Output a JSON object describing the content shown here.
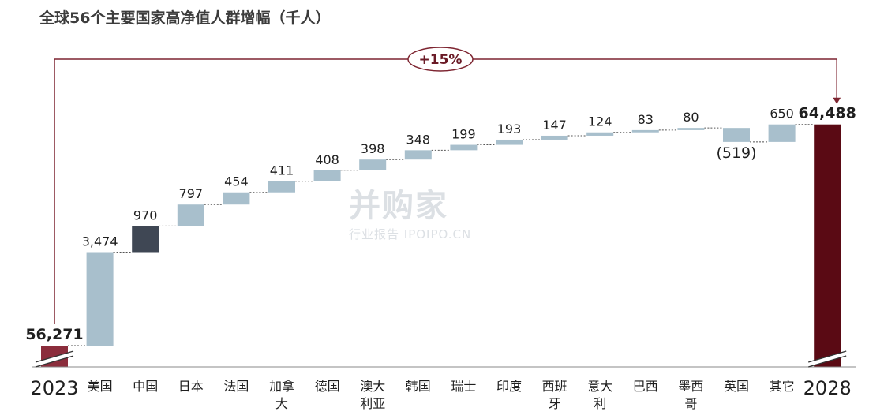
{
  "title": "全球56个主要国家高净值人群增幅（千人）",
  "growth_badge": "+15%",
  "watermark": {
    "main": "并购家",
    "sub": "行业报告 IPOIPO.CN"
  },
  "colors": {
    "start": "#8b2d3c",
    "end": "#5a0a14",
    "increase": "#a8bfcc",
    "highlight": "#3f4754",
    "accent": "#7d2430"
  },
  "chart_data": {
    "type": "bar",
    "subtype": "waterfall",
    "start": {
      "category": "2023",
      "value": 56271,
      "label": "56,271"
    },
    "end": {
      "category": "2028",
      "value": 64488,
      "label": "64,488"
    },
    "steps": [
      {
        "category": "美国",
        "lines": [
          "美国"
        ],
        "value": 3474,
        "label": "3,474"
      },
      {
        "category": "中国",
        "lines": [
          "中国"
        ],
        "value": 970,
        "label": "970",
        "highlight": true
      },
      {
        "category": "日本",
        "lines": [
          "日本"
        ],
        "value": 797,
        "label": "797"
      },
      {
        "category": "法国",
        "lines": [
          "法国"
        ],
        "value": 454,
        "label": "454"
      },
      {
        "category": "加拿大",
        "lines": [
          "加拿",
          "大"
        ],
        "value": 411,
        "label": "411"
      },
      {
        "category": "德国",
        "lines": [
          "德国"
        ],
        "value": 408,
        "label": "408"
      },
      {
        "category": "澳大利亚",
        "lines": [
          "澳大",
          "利亚"
        ],
        "value": 398,
        "label": "398"
      },
      {
        "category": "韩国",
        "lines": [
          "韩国"
        ],
        "value": 348,
        "label": "348"
      },
      {
        "category": "瑞士",
        "lines": [
          "瑞士"
        ],
        "value": 199,
        "label": "199"
      },
      {
        "category": "印度",
        "lines": [
          "印度"
        ],
        "value": 193,
        "label": "193"
      },
      {
        "category": "西班牙",
        "lines": [
          "西班",
          "牙"
        ],
        "value": 147,
        "label": "147"
      },
      {
        "category": "意大利",
        "lines": [
          "意大",
          "利"
        ],
        "value": 124,
        "label": "124"
      },
      {
        "category": "巴西",
        "lines": [
          "巴西"
        ],
        "value": 83,
        "label": "83"
      },
      {
        "category": "墨西哥",
        "lines": [
          "墨西",
          "哥"
        ],
        "value": 80,
        "label": "80"
      },
      {
        "category": "英国",
        "lines": [
          "英国"
        ],
        "value": -519,
        "label": "(519)"
      },
      {
        "category": "其它",
        "lines": [
          "其它"
        ],
        "value": 650,
        "label": "650"
      }
    ],
    "axis_broken": true,
    "grid": false,
    "legend": "none"
  }
}
